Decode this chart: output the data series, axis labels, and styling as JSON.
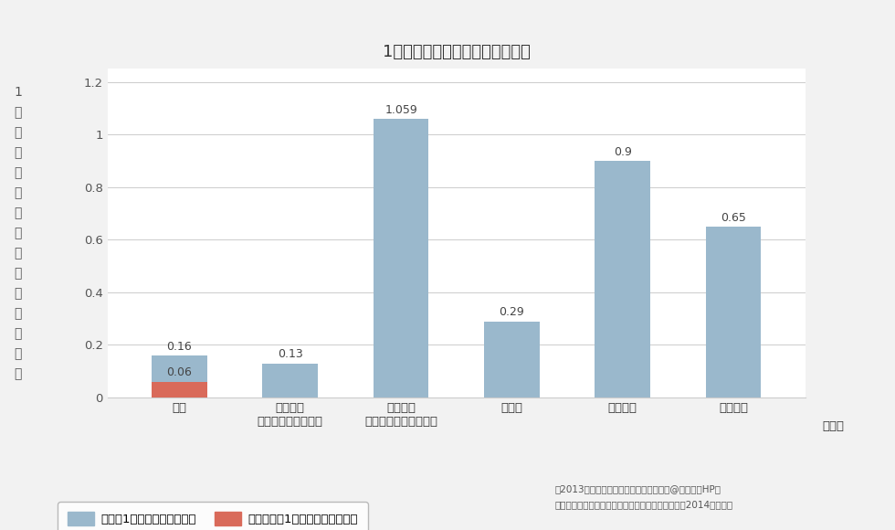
{
  "title": "1軒あたりの停電回数の国際比較",
  "categories": [
    "日本",
    "アメリカ\n（ニューヨーク州）",
    "アメリカ\n（カリフォルニア州）",
    "ドイツ",
    "フランス",
    "イギリス"
  ],
  "bar_values": [
    0.16,
    0.13,
    1.059,
    0.29,
    0.9,
    0.65
  ],
  "overlay_value": 0.06,
  "overlay_index": 0,
  "bar_color": "#9ab8cc",
  "overlay_color": "#d96a5a",
  "ylabel_chars": [
    "1",
    "軒",
    "あ",
    "た",
    "り",
    "の",
    "停",
    "電",
    "回",
    "数",
    "（",
    "回",
    "／",
    "年",
    "）"
  ],
  "xlabel": "（国）",
  "ylim": [
    0,
    1.25
  ],
  "yticks": [
    0,
    0.2,
    0.4,
    0.6,
    0.8,
    1.0,
    1.2
  ],
  "legend_labels": [
    "各国の1軒あたりの停電回数",
    "東京電力の1軒あたりの停電回数"
  ],
  "note_line1": "「2013年実績値（電気事業連合会調べ）@東京電力HP」",
  "note_line2": "「出典：海外電力調査会編「海外電気事業統計」（2014年度版）",
  "background_color": "#f2f2f2",
  "plot_bg_color": "#ffffff",
  "grid_color": "#cccccc",
  "title_fontsize": 13,
  "label_fontsize": 9.5,
  "tick_fontsize": 9.5,
  "value_fontsize": 9,
  "ylabel_fontsize": 10
}
